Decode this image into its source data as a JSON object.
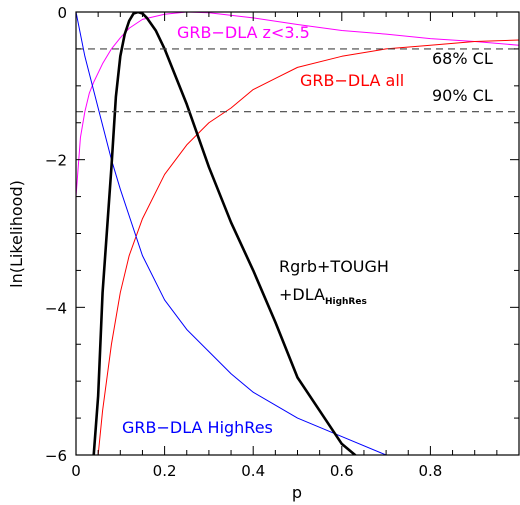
{
  "chart_data": {
    "type": "line",
    "xlabel": "p",
    "ylabel": "ln(Likelihood)",
    "xlim": [
      0,
      1.0
    ],
    "ylim": [
      -6,
      0
    ],
    "xticks": [
      0,
      0.2,
      0.4,
      0.6,
      0.8
    ],
    "xtick_labels": [
      "0",
      "0.2",
      "0.4",
      "0.6",
      "0.8"
    ],
    "yticks": [
      -6,
      -4,
      -2,
      0
    ],
    "ytick_labels": [
      "−6",
      "−4",
      "−2",
      "0"
    ],
    "grid": false,
    "reference_lines": [
      {
        "y": -0.5,
        "label": "68% CL",
        "style": "dashed",
        "color": "#444444"
      },
      {
        "y": -1.35,
        "label": "90% CL",
        "style": "dashed",
        "color": "#444444"
      }
    ],
    "series": [
      {
        "name": "GRB−DLA z<3.5",
        "color": "#ff00ff",
        "width": 1,
        "points": [
          [
            0.0,
            -2.5
          ],
          [
            0.01,
            -1.7
          ],
          [
            0.02,
            -1.35
          ],
          [
            0.03,
            -1.1
          ],
          [
            0.04,
            -0.95
          ],
          [
            0.06,
            -0.7
          ],
          [
            0.08,
            -0.5
          ],
          [
            0.1,
            -0.35
          ],
          [
            0.12,
            -0.22
          ],
          [
            0.15,
            -0.1
          ],
          [
            0.2,
            -0.03
          ],
          [
            0.25,
            0.0
          ],
          [
            0.3,
            -0.01
          ],
          [
            0.4,
            -0.08
          ],
          [
            0.5,
            -0.17
          ],
          [
            0.6,
            -0.25
          ],
          [
            0.7,
            -0.3
          ],
          [
            0.8,
            -0.36
          ],
          [
            0.9,
            -0.4
          ],
          [
            1.0,
            -0.45
          ]
        ]
      },
      {
        "name": "GRB−DLA all",
        "color": "#ff0000",
        "width": 1,
        "points": [
          [
            0.05,
            -6.0
          ],
          [
            0.06,
            -5.4
          ],
          [
            0.08,
            -4.5
          ],
          [
            0.1,
            -3.8
          ],
          [
            0.12,
            -3.3
          ],
          [
            0.15,
            -2.8
          ],
          [
            0.2,
            -2.2
          ],
          [
            0.25,
            -1.8
          ],
          [
            0.3,
            -1.5
          ],
          [
            0.35,
            -1.3
          ],
          [
            0.4,
            -1.05
          ],
          [
            0.45,
            -0.9
          ],
          [
            0.5,
            -0.75
          ],
          [
            0.6,
            -0.6
          ],
          [
            0.7,
            -0.5
          ],
          [
            0.8,
            -0.45
          ],
          [
            0.9,
            -0.4
          ],
          [
            1.0,
            -0.38
          ]
        ]
      },
      {
        "name": "GRB−DLA HighRes",
        "color": "#0000ff",
        "width": 1,
        "points": [
          [
            0.0,
            0.0
          ],
          [
            0.02,
            -0.6
          ],
          [
            0.05,
            -1.3
          ],
          [
            0.08,
            -2.0
          ],
          [
            0.1,
            -2.4
          ],
          [
            0.15,
            -3.3
          ],
          [
            0.2,
            -3.9
          ],
          [
            0.25,
            -4.3
          ],
          [
            0.3,
            -4.6
          ],
          [
            0.35,
            -4.9
          ],
          [
            0.4,
            -5.15
          ],
          [
            0.5,
            -5.5
          ],
          [
            0.6,
            -5.75
          ],
          [
            0.7,
            -6.0
          ]
        ]
      },
      {
        "name": "Rgrb+TOUGH +DLA HighRes",
        "color": "#000000",
        "width": 2.6,
        "points": [
          [
            0.04,
            -6.0
          ],
          [
            0.05,
            -5.2
          ],
          [
            0.06,
            -3.8
          ],
          [
            0.08,
            -2.1
          ],
          [
            0.09,
            -1.15
          ],
          [
            0.1,
            -0.6
          ],
          [
            0.11,
            -0.3
          ],
          [
            0.12,
            -0.12
          ],
          [
            0.13,
            -0.02
          ],
          [
            0.14,
            0.0
          ],
          [
            0.15,
            -0.02
          ],
          [
            0.16,
            -0.08
          ],
          [
            0.18,
            -0.25
          ],
          [
            0.2,
            -0.5
          ],
          [
            0.25,
            -1.25
          ],
          [
            0.3,
            -2.1
          ],
          [
            0.35,
            -2.85
          ],
          [
            0.4,
            -3.5
          ],
          [
            0.45,
            -4.2
          ],
          [
            0.5,
            -4.95
          ],
          [
            0.55,
            -5.4
          ],
          [
            0.6,
            -5.85
          ],
          [
            0.63,
            -6.0
          ]
        ]
      }
    ],
    "annotations": [
      {
        "text": "GRB−DLA z<3.5",
        "color": "#ff00ff"
      },
      {
        "text": "GRB−DLA all",
        "color": "#ff0000"
      },
      {
        "text": "GRB−DLA HighRes",
        "color": "#0000ff"
      },
      {
        "text": "Rgrb+TOUGH",
        "color": "#000000"
      },
      {
        "text": "+DLA",
        "color": "#000000",
        "subscript": "HighRes"
      }
    ]
  }
}
